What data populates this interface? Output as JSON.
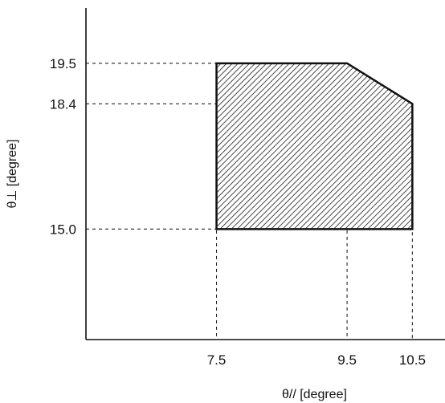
{
  "chart_data": {
    "type": "area",
    "title": "",
    "xlabel": "θ// [degree]",
    "ylabel": "θ⊥ [degree]",
    "xticks": [
      7.5,
      9.5,
      10.5
    ],
    "xtick_labels": [
      "7.5",
      "9.5",
      "10.5"
    ],
    "yticks": [
      15.0,
      18.4,
      19.5
    ],
    "ytick_labels": [
      "15.0",
      "18.4",
      "19.5"
    ],
    "xlim": [
      5.5,
      11.0
    ],
    "ylim": [
      12.0,
      21.0
    ],
    "grid": false,
    "reference_lines": "dashed guides from each tick value to the region boundary",
    "region": {
      "fill": "diagonal hatching",
      "stroke_color": "#111111",
      "hatch_color": "#333333",
      "points": [
        {
          "x": 7.5,
          "y": 15.0
        },
        {
          "x": 7.5,
          "y": 19.5
        },
        {
          "x": 9.5,
          "y": 19.5
        },
        {
          "x": 10.5,
          "y": 18.4
        },
        {
          "x": 10.5,
          "y": 15.0
        }
      ]
    }
  }
}
